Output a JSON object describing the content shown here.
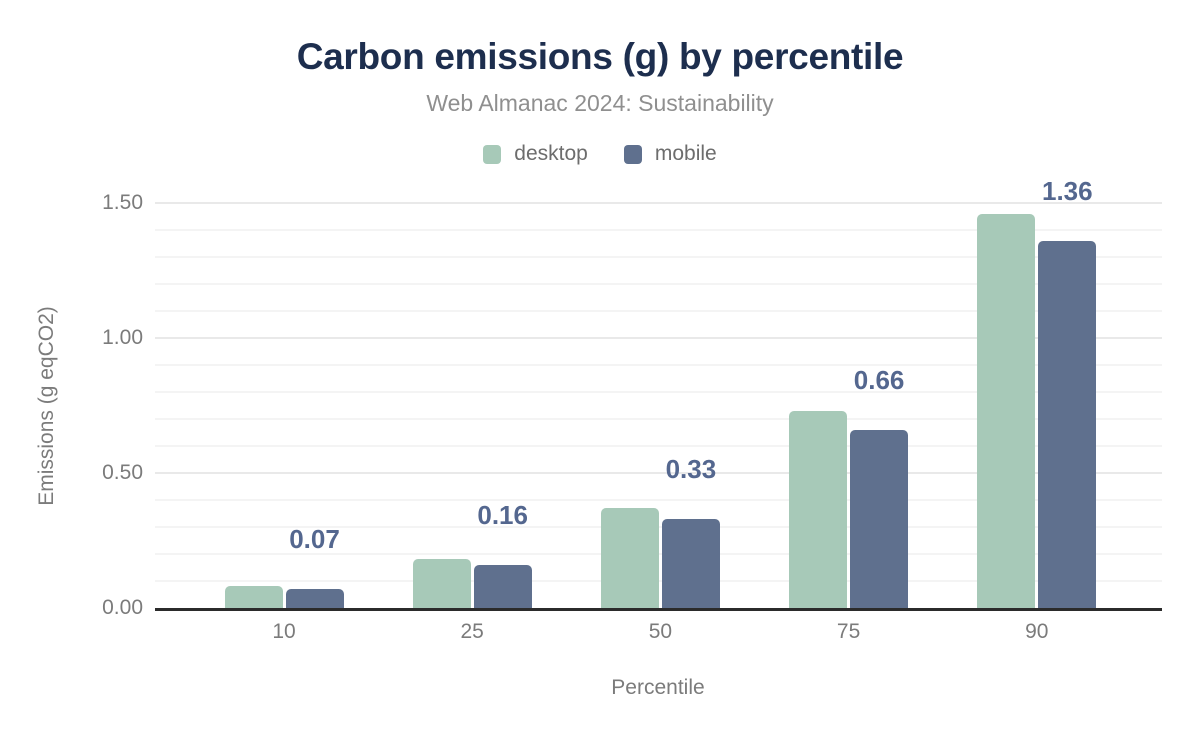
{
  "title": "Carbon emissions (g) by percentile",
  "subtitle": "Web Almanac 2024: Sustainability",
  "colors": {
    "title": "#1d2e4e",
    "subtitle": "#8f8f8f",
    "legend_text": "#6d6d6d",
    "axis_text": "#7b7b7b",
    "axis_line": "#2b2b2b",
    "grid_major": "#e9e9e9",
    "grid_minor": "#f4f4f4",
    "desktop": "#a7c9b8",
    "mobile": "#5f708e",
    "data_label": "#54678f"
  },
  "chart_data": {
    "type": "bar",
    "title": "Carbon emissions (g) by percentile",
    "subtitle": "Web Almanac 2024: Sustainability",
    "xlabel": "Percentile",
    "ylabel": "Emissions (g eqCO2)",
    "categories": [
      "10",
      "25",
      "50",
      "75",
      "90"
    ],
    "series": [
      {
        "name": "desktop",
        "color": "#a7c9b8",
        "values": [
          0.08,
          0.18,
          0.37,
          0.73,
          1.46
        ]
      },
      {
        "name": "mobile",
        "color": "#5f708e",
        "values": [
          0.07,
          0.16,
          0.33,
          0.66,
          1.36
        ]
      }
    ],
    "data_labels": {
      "on_series": "mobile",
      "values": [
        "0.07",
        "0.16",
        "0.33",
        "0.66",
        "1.36"
      ]
    },
    "ylim": [
      0,
      1.5
    ],
    "yticks": [
      {
        "label": "0.00",
        "value": 0
      },
      {
        "label": "0.50",
        "value": 0.5
      },
      {
        "label": "1.00",
        "value": 1.0
      },
      {
        "label": "1.50",
        "value": 1.5
      }
    ],
    "grid": {
      "orientation": "horizontal",
      "minor_step": 0.1,
      "major_step": 0.5
    },
    "legend_position": "top"
  }
}
